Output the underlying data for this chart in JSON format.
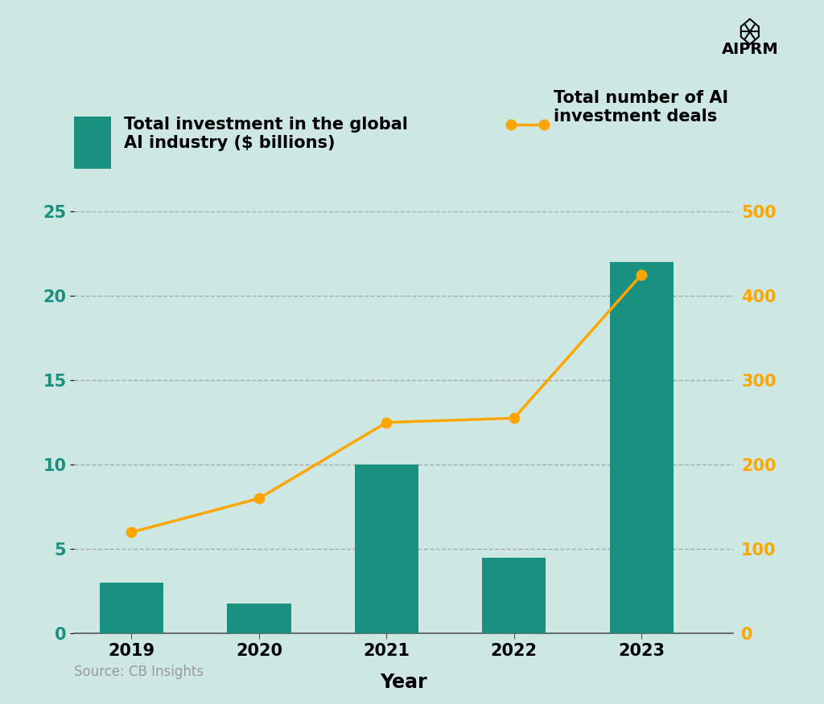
{
  "years": [
    2019,
    2020,
    2021,
    2022,
    2023
  ],
  "investment_billions": [
    3.0,
    1.8,
    10.0,
    4.5,
    22.0
  ],
  "investment_deals": [
    120,
    160,
    250,
    255,
    425
  ],
  "bar_color": "#1a9080",
  "line_color": "#FFA500",
  "background_color": "#cde8e3",
  "left_ylim": [
    0,
    25
  ],
  "right_ylim": [
    0,
    500
  ],
  "left_yticks": [
    0,
    5,
    10,
    15,
    20,
    25
  ],
  "right_yticks": [
    0,
    100,
    200,
    300,
    400,
    500
  ],
  "xlabel": "Year",
  "legend_bar_label": "Total investment in the global\nAI industry ($ billions)",
  "legend_line_label": "Total number of AI\ninvestment deals",
  "source_text": "Source: CB Insights",
  "axis_label_fontsize": 17,
  "tick_fontsize": 15,
  "legend_fontsize": 15,
  "source_fontsize": 12,
  "left_tick_color": "#1a9080",
  "right_tick_color": "#FFA500",
  "grid_color": "#aaaaaa",
  "spine_color": "#555555"
}
